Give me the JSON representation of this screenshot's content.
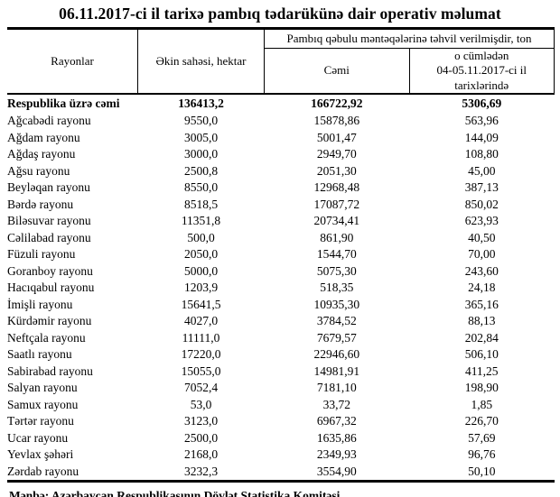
{
  "page": {
    "title": "06.11.2017-ci il tarixə pambıq tədarükünə dair operativ məlumat",
    "source_note": "Mənbə: Azərbaycan Respublikasının Dövlət Statistika Komitəsi"
  },
  "colors": {
    "text": "#000000",
    "background": "#ffffff",
    "border": "#000000"
  },
  "table": {
    "headers": {
      "districts": "Rayonlar",
      "sown_area": "Əkin sahəsi, hektar",
      "delivered_group": "Pambıq qəbulu məntəqələrinə təhvil verilmişdir, ton",
      "total": "Cəmi",
      "including_line1": "o cümlədən",
      "including_line2": "04-05.11.2017-ci il tarixlərində"
    },
    "total_row": {
      "name": "Respublika üzrə cəmi",
      "area": "136413,2",
      "delivered_total": "166722,92",
      "delivered_recent": "5306,69"
    },
    "rows": [
      {
        "name": "Ağcabədi rayonu",
        "area": "9550,0",
        "delivered_total": "15878,86",
        "delivered_recent": "563,96"
      },
      {
        "name": "Ağdam rayonu",
        "area": "3005,0",
        "delivered_total": "5001,47",
        "delivered_recent": "144,09"
      },
      {
        "name": "Ağdaş rayonu",
        "area": "3000,0",
        "delivered_total": "2949,70",
        "delivered_recent": "108,80"
      },
      {
        "name": "Ağsu rayonu",
        "area": "2500,8",
        "delivered_total": "2051,30",
        "delivered_recent": "45,00"
      },
      {
        "name": "Beyləqan rayonu",
        "area": "8550,0",
        "delivered_total": "12968,48",
        "delivered_recent": "387,13"
      },
      {
        "name": "Bərdə rayonu",
        "area": "8518,5",
        "delivered_total": "17087,72",
        "delivered_recent": "850,02"
      },
      {
        "name": "Biləsuvar rayonu",
        "area": "11351,8",
        "delivered_total": "20734,41",
        "delivered_recent": "623,93"
      },
      {
        "name": "Cəlilabad rayonu",
        "area": "500,0",
        "delivered_total": "861,90",
        "delivered_recent": "40,50"
      },
      {
        "name": "Füzuli rayonu",
        "area": "2050,0",
        "delivered_total": "1544,70",
        "delivered_recent": "70,00"
      },
      {
        "name": "Goranboy rayonu",
        "area": "5000,0",
        "delivered_total": "5075,30",
        "delivered_recent": "243,60"
      },
      {
        "name": "Hacıqabul rayonu",
        "area": "1203,9",
        "delivered_total": "518,35",
        "delivered_recent": "24,18"
      },
      {
        "name": "İmişli rayonu",
        "area": "15641,5",
        "delivered_total": "10935,30",
        "delivered_recent": "365,16"
      },
      {
        "name": "Kürdəmir rayonu",
        "area": "4027,0",
        "delivered_total": "3784,52",
        "delivered_recent": "88,13"
      },
      {
        "name": "Neftçala rayonu",
        "area": "11111,0",
        "delivered_total": "7679,57",
        "delivered_recent": "202,84"
      },
      {
        "name": "Saatlı rayonu",
        "area": "17220,0",
        "delivered_total": "22946,60",
        "delivered_recent": "506,10"
      },
      {
        "name": "Sabirabad rayonu",
        "area": "15055,0",
        "delivered_total": "14981,91",
        "delivered_recent": "411,25"
      },
      {
        "name": "Salyan rayonu",
        "area": "7052,4",
        "delivered_total": "7181,10",
        "delivered_recent": "198,90"
      },
      {
        "name": "Samux rayonu",
        "area": "53,0",
        "delivered_total": "33,72",
        "delivered_recent": "1,85"
      },
      {
        "name": "Tərtər rayonu",
        "area": "3123,0",
        "delivered_total": "6967,32",
        "delivered_recent": "226,70"
      },
      {
        "name": "Ucar rayonu",
        "area": "2500,0",
        "delivered_total": "1635,86",
        "delivered_recent": "57,69"
      },
      {
        "name": "Yevlax şəhəri",
        "area": "2168,0",
        "delivered_total": "2349,93",
        "delivered_recent": "96,76"
      },
      {
        "name": "Zərdab rayonu",
        "area": "3232,3",
        "delivered_total": "3554,90",
        "delivered_recent": "50,10"
      }
    ]
  }
}
